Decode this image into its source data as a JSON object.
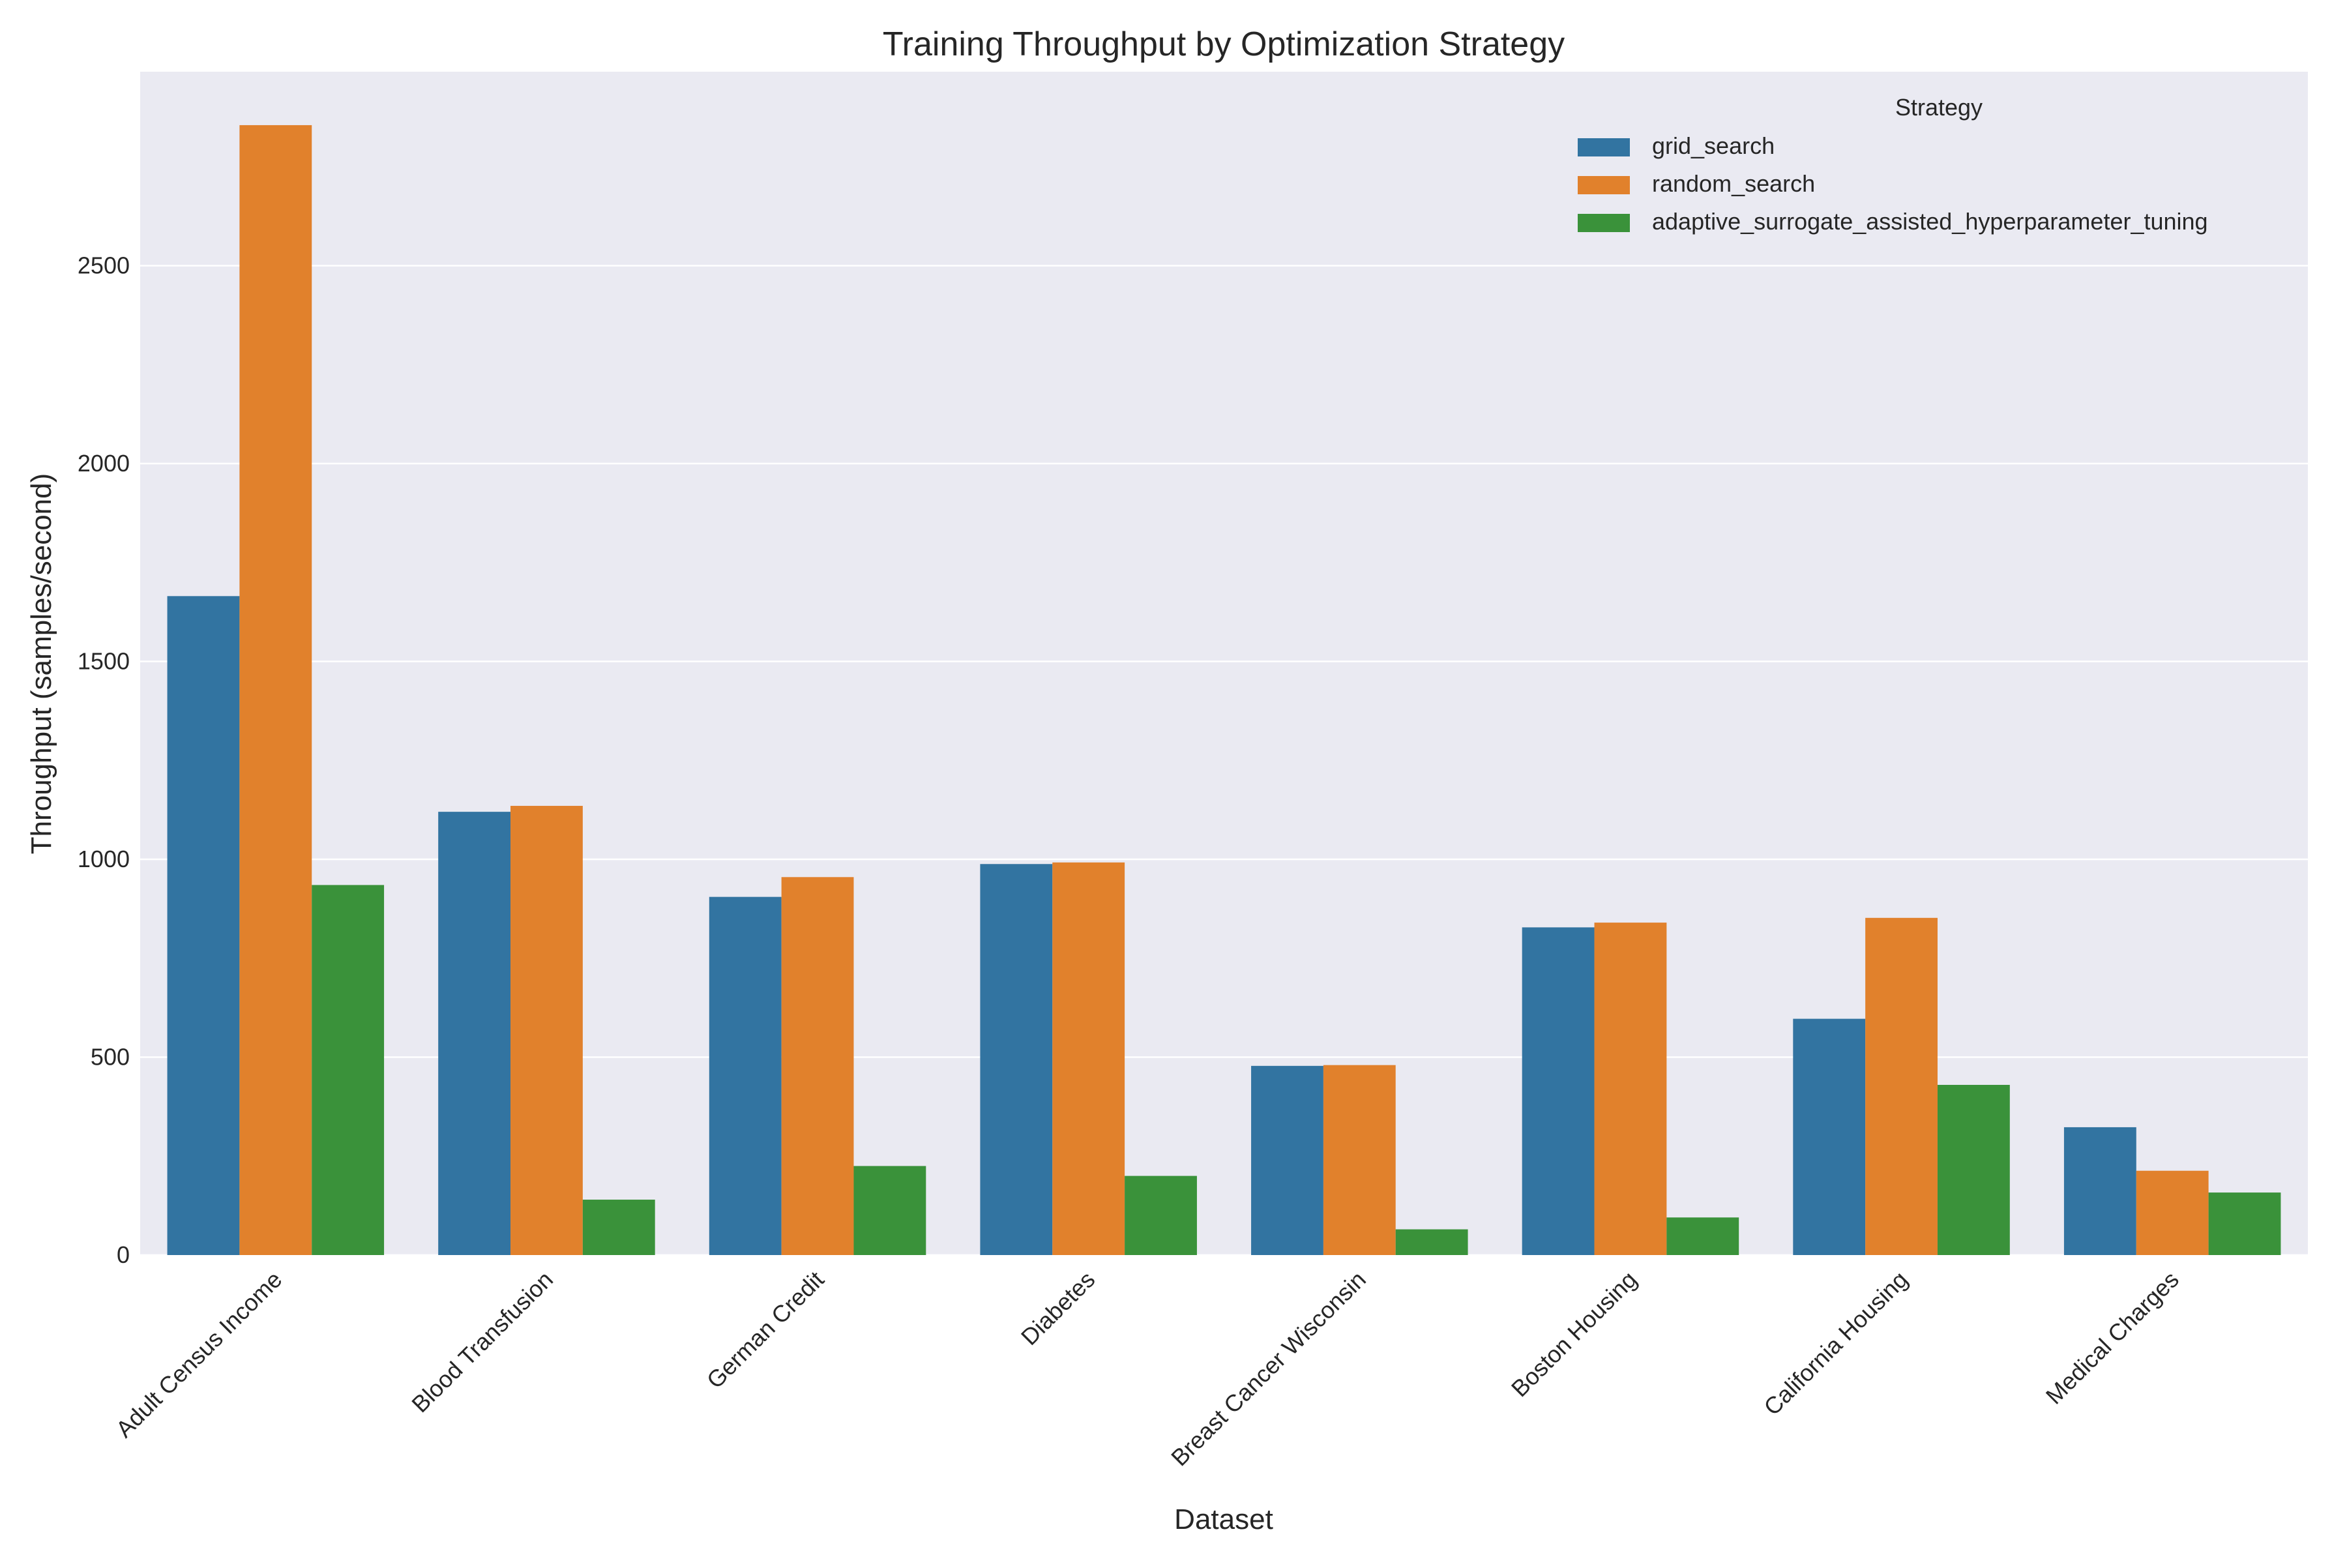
{
  "chart_data": {
    "type": "bar",
    "title": "Training Throughput by Optimization Strategy",
    "xlabel": "Dataset",
    "ylabel": "Throughput (samples/second)",
    "categories": [
      "Adult Census Income",
      "Blood Transfusion",
      "German Credit",
      "Diabetes",
      "Breast Cancer Wisconsin",
      "Boston Housing",
      "California Housing",
      "Medical Charges"
    ],
    "series": [
      {
        "name": "grid_search",
        "color": "#3274a1",
        "values": [
          1665,
          1120,
          905,
          988,
          478,
          828,
          597,
          323
        ]
      },
      {
        "name": "random_search",
        "color": "#e1812c",
        "values": [
          2855,
          1135,
          955,
          992,
          480,
          840,
          852,
          213
        ]
      },
      {
        "name": "adaptive_surrogate_assisted_hyperparameter_tuning",
        "color": "#3a923a",
        "values": [
          935,
          140,
          225,
          200,
          65,
          95,
          430,
          158
        ]
      }
    ],
    "ylim": [
      0,
      2990
    ],
    "yticks": [
      0,
      500,
      1000,
      1500,
      2000,
      2500
    ],
    "grid": true,
    "legend": {
      "title": "Strategy",
      "placement": "top-right"
    },
    "background": "#eaeaf2"
  }
}
